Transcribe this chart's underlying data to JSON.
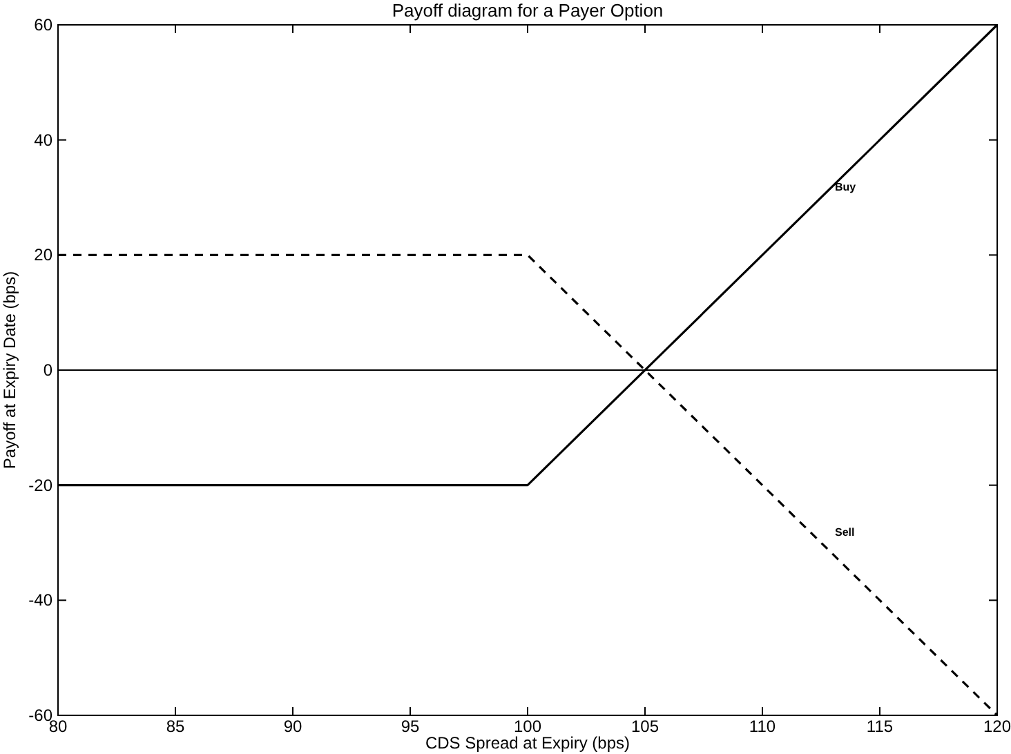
{
  "chart_data": {
    "type": "line",
    "title": "Payoff diagram for a Payer Option",
    "xlabel": "CDS Spread at Expiry (bps)",
    "ylabel": "Payoff at Expiry Date (bps)",
    "x": [
      80,
      100,
      120
    ],
    "series": [
      {
        "name": "Buy",
        "color": "#000000",
        "values": [
          -20,
          -20,
          60
        ],
        "line_style": "solid"
      },
      {
        "name": "Sell",
        "color": "#000000",
        "values": [
          20,
          20,
          -60
        ],
        "line_style": "dashed"
      }
    ],
    "xlim": [
      80,
      120
    ],
    "xticks": [
      80,
      85,
      90,
      95,
      100,
      105,
      110,
      115,
      120
    ],
    "ylim": [
      -60,
      60
    ],
    "yticks": [
      -60,
      -40,
      -20,
      0,
      20,
      40,
      60
    ],
    "ref_lines": [
      {
        "axis": "y",
        "value": 0,
        "color": "#000000"
      }
    ],
    "grid": false,
    "legend": false,
    "marker": "none"
  }
}
